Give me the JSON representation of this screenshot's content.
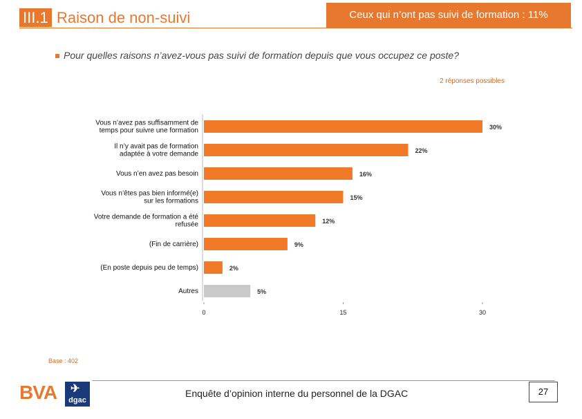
{
  "header": {
    "section_number": "III.1",
    "section_title": "Raison de non-suivi",
    "summary": "Ceux qui n’ont pas suivi de formation : 11%"
  },
  "question": "Pour quelles raisons n’avez-vous pas suivi de formation depuis que vous occupez ce poste?",
  "note": "2 réponses possibles",
  "chart_data": {
    "type": "bar",
    "orientation": "horizontal",
    "categories": [
      [
        "Vous n’avez pas suffisamment de",
        "temps pour suivre une formation"
      ],
      [
        "Il n’y avait pas de formation",
        "adaptée à votre demande"
      ],
      [
        "Vous n’en avez pas besoin"
      ],
      [
        "Vous n’êtes pas bien informé(e)",
        "sur les formations"
      ],
      [
        "Votre demande de formation a été",
        "refusée"
      ],
      [
        "(Fin de carrière)"
      ],
      [
        "(En poste depuis peu de temps)"
      ],
      [
        "Autres"
      ]
    ],
    "values": [
      30,
      22,
      16,
      15,
      12,
      9,
      2,
      5
    ],
    "value_labels": [
      "30%",
      "22%",
      "16%",
      "15%",
      "12%",
      "9%",
      "2%",
      "5%"
    ],
    "bar_colors": [
      "#f07a28",
      "#f07a28",
      "#f07a28",
      "#f07a28",
      "#f07a28",
      "#f07a28",
      "#f07a28",
      "#c9c9c9"
    ],
    "xlim": [
      0,
      30
    ],
    "xticks": [
      0,
      15,
      30
    ],
    "xlabel": "",
    "ylabel": ""
  },
  "base": "Base : 402",
  "footer": {
    "logo_bva": "BVA",
    "logo_dgac": "dgac",
    "survey_title": "Enquête d’opinion interne du personnel de la DGAC",
    "page_number": "27"
  }
}
